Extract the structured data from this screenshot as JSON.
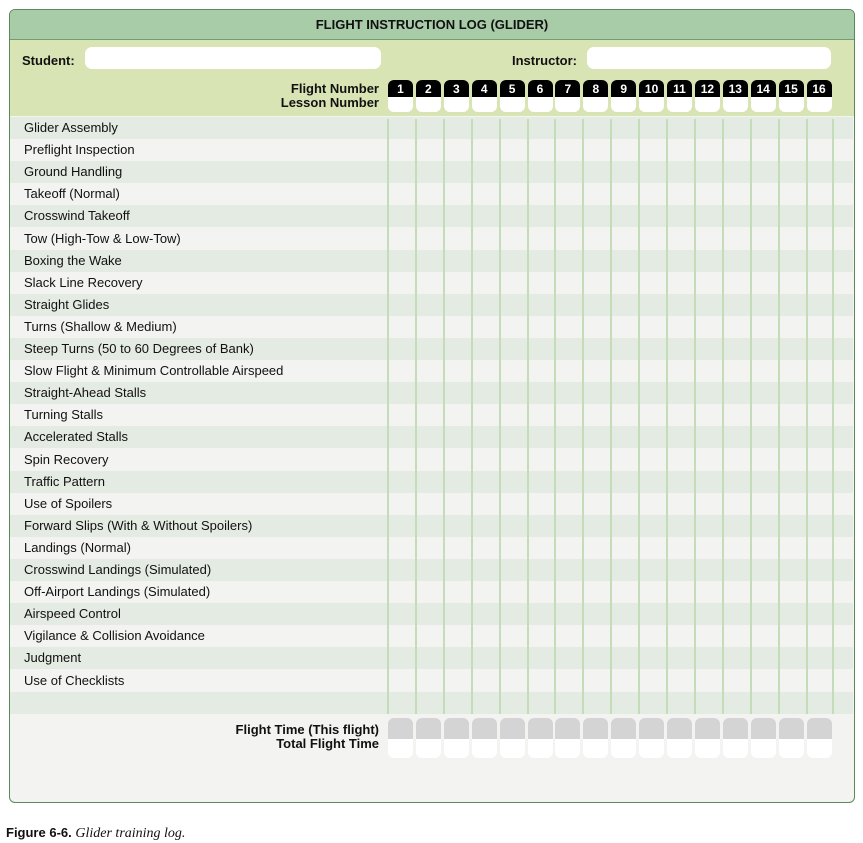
{
  "form": {
    "title": "FLIGHT INSTRUCTION LOG (GLIDER)",
    "student_label": "Student:",
    "student_value": "",
    "instructor_label": "Instructor:",
    "instructor_value": "",
    "flight_number_label": "Flight Number",
    "lesson_number_label": "Lesson Number",
    "flight_numbers": [
      "1",
      "2",
      "3",
      "4",
      "5",
      "6",
      "7",
      "8",
      "9",
      "10",
      "11",
      "12",
      "13",
      "14",
      "15",
      "16"
    ],
    "maneuvers": [
      "Glider Assembly",
      "Preflight Inspection",
      "Ground Handling",
      "Takeoff (Normal)",
      "Crosswind Takeoff",
      "Tow (High-Tow & Low-Tow)",
      "Boxing the Wake",
      "Slack Line Recovery",
      "Straight Glides",
      "Turns (Shallow & Medium)",
      "Steep Turns (50 to 60 Degrees of Bank)",
      "Slow Flight & Minimum Controllable Airspeed",
      "Straight-Ahead Stalls",
      "Turning Stalls",
      "Accelerated Stalls",
      "Spin Recovery",
      "Traffic Pattern",
      "Use of Spoilers",
      "Forward Slips (With & Without Spoilers)",
      "Landings (Normal)",
      "Crosswind Landings (Simulated)",
      "Off-Airport Landings (Simulated)",
      "Airspeed Control",
      "Vigilance & Collision Avoidance",
      "Judgment",
      "Use of Checklists",
      ""
    ],
    "flight_time_label": "Flight Time (This flight)",
    "total_flight_time_label": "Total Flight Time",
    "colors": {
      "title_bar": "#a8cba8",
      "header": "#d9e4b5",
      "row_dark": "#e4ebe2",
      "row_light": "#f3f3f1",
      "grid_line": "#c5dcb8",
      "border": "#5a8a5a"
    }
  },
  "caption": {
    "label": "Figure 6-6.",
    "text": "Glider training log."
  }
}
